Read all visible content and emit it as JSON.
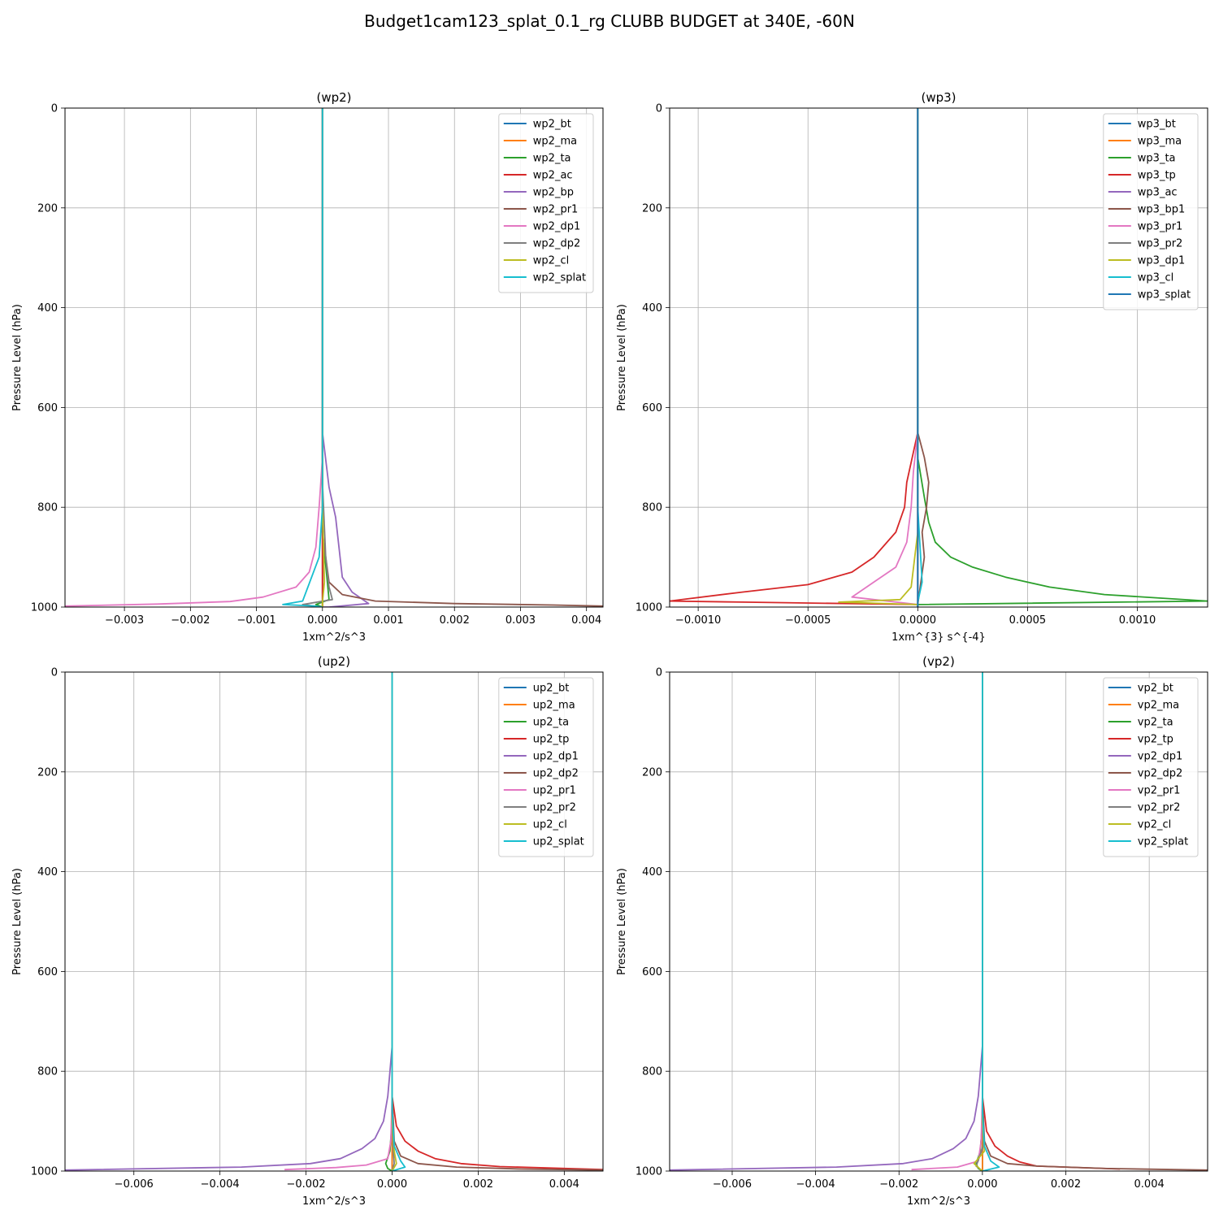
{
  "suptitle": "Budget1cam123_splat_0.1_rg CLUBB BUDGET at 340E, -60N",
  "colors": [
    "#1f77b4",
    "#ff7f0e",
    "#2ca02c",
    "#d62728",
    "#9467bd",
    "#8c564b",
    "#e377c2",
    "#7f7f7f",
    "#bcbd22",
    "#17becf"
  ],
  "chart_data": [
    {
      "type": "line",
      "title": "(wp2)",
      "xlabel": "1xm^2/s^3",
      "ylabel": "Pressure Level (hPa)",
      "xlim": [
        -0.0039,
        0.00425
      ],
      "ylim": [
        1000,
        0
      ],
      "y_inverted": true,
      "grid": true,
      "legend_loc": "upper right",
      "xticks": [
        -0.003,
        -0.002,
        -0.001,
        0.0,
        0.001,
        0.002,
        0.003,
        0.004
      ],
      "xtick_labels": [
        "−0.003",
        "−0.002",
        "−0.001",
        "0.000",
        "0.001",
        "0.002",
        "0.003",
        "0.004"
      ],
      "yticks": [
        0,
        200,
        400,
        600,
        800,
        1000
      ],
      "ytick_labels": [
        "0",
        "200",
        "400",
        "600",
        "800",
        "1000"
      ],
      "series": [
        {
          "name": "wp2_bt",
          "x": [
            0,
            0,
            0,
            0
          ],
          "y": [
            0,
            600,
            950,
            1000
          ]
        },
        {
          "name": "wp2_ma",
          "x": [
            0,
            0,
            0,
            0
          ],
          "y": [
            0,
            600,
            950,
            1000
          ]
        },
        {
          "name": "wp2_ta",
          "x": [
            0,
            0,
            0.0001,
            -0.0001,
            0
          ],
          "y": [
            0,
            850,
            985,
            995,
            1000
          ]
        },
        {
          "name": "wp2_ac",
          "x": [
            0,
            0,
            0,
            0
          ],
          "y": [
            0,
            600,
            950,
            1000
          ]
        },
        {
          "name": "wp2_bp",
          "x": [
            0,
            0,
            0.0001,
            0.0002,
            0.00025,
            0.0003,
            0.00045,
            0.0007,
            0.0001,
            0
          ],
          "y": [
            0,
            650,
            760,
            820,
            880,
            940,
            970,
            993,
            1000,
            1000
          ]
        },
        {
          "name": "wp2_pr1",
          "x": [
            0,
            0,
            0.0001,
            0.0003,
            0.0008,
            0.002,
            0.0035,
            0.00425
          ],
          "y": [
            0,
            850,
            950,
            975,
            988,
            993,
            996,
            998
          ]
        },
        {
          "name": "wp2_dp1",
          "x": [
            0,
            0,
            -5e-05,
            -0.0001,
            -0.0002,
            -0.0004,
            -0.0009,
            -0.0014,
            -0.0025,
            -0.0039
          ],
          "y": [
            0,
            700,
            800,
            880,
            930,
            960,
            980,
            989,
            994,
            998
          ]
        },
        {
          "name": "wp2_dp2",
          "x": [
            0,
            0,
            5e-05,
            0.0001,
            0.00015,
            -0.0003,
            0
          ],
          "y": [
            0,
            750,
            900,
            960,
            985,
            995,
            1000
          ]
        },
        {
          "name": "wp2_cl",
          "x": [
            0,
            0,
            3e-05,
            0,
            0
          ],
          "y": [
            0,
            800,
            950,
            990,
            1000
          ]
        },
        {
          "name": "wp2_splat",
          "x": [
            0,
            0,
            -5e-05,
            -0.0003,
            -0.0006,
            -0.0001,
            0
          ],
          "y": [
            0,
            800,
            900,
            988,
            995,
            998,
            1000
          ]
        }
      ]
    },
    {
      "type": "line",
      "title": "(wp3)",
      "xlabel": "1xm^{3} s^{-4}",
      "ylabel": "Pressure Level (hPa)",
      "xlim": [
        -0.00113,
        0.00132
      ],
      "ylim": [
        1000,
        0
      ],
      "y_inverted": true,
      "grid": true,
      "legend_loc": "upper right",
      "xticks": [
        -0.001,
        -0.0005,
        0.0,
        0.0005,
        0.001
      ],
      "xtick_labels": [
        "−0.0010",
        "−0.0005",
        "0.0000",
        "0.0005",
        "0.0010"
      ],
      "yticks": [
        0,
        200,
        400,
        600,
        800,
        1000
      ],
      "ytick_labels": [
        "0",
        "200",
        "400",
        "600",
        "800",
        "1000"
      ],
      "series": [
        {
          "name": "wp3_bt",
          "x": [
            0,
            0,
            0,
            0
          ],
          "y": [
            0,
            600,
            950,
            1000
          ]
        },
        {
          "name": "wp3_ma",
          "x": [
            0,
            0,
            0,
            0
          ],
          "y": [
            0,
            600,
            950,
            1000
          ]
        },
        {
          "name": "wp3_ta",
          "x": [
            0,
            0,
            3e-05,
            5e-05,
            8e-05,
            0.00015,
            0.00025,
            0.0004,
            0.0006,
            0.00085,
            0.00132,
            0
          ],
          "y": [
            0,
            700,
            780,
            830,
            870,
            900,
            920,
            940,
            960,
            975,
            988,
            995
          ]
        },
        {
          "name": "wp3_tp",
          "x": [
            0,
            0,
            -5e-05,
            -6e-05,
            -0.0001,
            -0.0002,
            -0.0003,
            -0.0005,
            -0.0008,
            -0.00113,
            -0.0008,
            0
          ],
          "y": [
            0,
            650,
            750,
            800,
            850,
            900,
            930,
            955,
            970,
            988,
            990,
            995
          ]
        },
        {
          "name": "wp3_ac",
          "x": [
            0,
            0,
            0,
            0
          ],
          "y": [
            0,
            600,
            950,
            1000
          ]
        },
        {
          "name": "wp3_bp1",
          "x": [
            0,
            0,
            3e-05,
            5e-05,
            4e-05,
            2e-05,
            3e-05,
            0
          ],
          "y": [
            0,
            650,
            700,
            750,
            800,
            850,
            900,
            995
          ]
        },
        {
          "name": "wp3_pr1",
          "x": [
            0,
            0,
            -2e-05,
            -3e-05,
            -5e-05,
            -0.0001,
            -0.0002,
            -0.0003,
            0
          ],
          "y": [
            0,
            650,
            730,
            800,
            870,
            920,
            950,
            980,
            995
          ]
        },
        {
          "name": "wp3_pr2",
          "x": [
            0,
            0,
            0,
            0
          ],
          "y": [
            0,
            600,
            950,
            1000
          ]
        },
        {
          "name": "wp3_dp1",
          "x": [
            0,
            0,
            -3e-05,
            -8e-05,
            -0.00036,
            0
          ],
          "y": [
            0,
            850,
            960,
            985,
            990,
            995
          ]
        },
        {
          "name": "wp3_cl",
          "x": [
            0,
            0,
            2e-05,
            0,
            0
          ],
          "y": [
            0,
            800,
            950,
            990,
            1000
          ]
        },
        {
          "name": "wp3_splat",
          "x": [
            0,
            0,
            0,
            0
          ],
          "y": [
            0,
            600,
            950,
            1000
          ]
        }
      ]
    },
    {
      "type": "line",
      "title": "(up2)",
      "xlabel": "1xm^2/s^3",
      "ylabel": "Pressure Level (hPa)",
      "xlim": [
        -0.0076,
        0.0049
      ],
      "ylim": [
        1000,
        0
      ],
      "y_inverted": true,
      "grid": true,
      "legend_loc": "upper right",
      "xticks": [
        -0.006,
        -0.004,
        -0.002,
        0.0,
        0.002,
        0.004
      ],
      "xtick_labels": [
        "−0.006",
        "−0.004",
        "−0.002",
        "0.000",
        "0.002",
        "0.004"
      ],
      "yticks": [
        0,
        200,
        400,
        600,
        800,
        1000
      ],
      "ytick_labels": [
        "0",
        "200",
        "400",
        "600",
        "800",
        "1000"
      ],
      "series": [
        {
          "name": "up2_bt",
          "x": [
            0,
            0,
            0,
            0
          ],
          "y": [
            0,
            600,
            950,
            1000
          ]
        },
        {
          "name": "up2_ma",
          "x": [
            0,
            0,
            0,
            0
          ],
          "y": [
            0,
            600,
            950,
            1000
          ]
        },
        {
          "name": "up2_ta",
          "x": [
            0,
            0,
            -5e-05,
            -0.00015,
            -0.0001,
            0
          ],
          "y": [
            0,
            900,
            960,
            985,
            995,
            1000
          ]
        },
        {
          "name": "up2_tp",
          "x": [
            0,
            0,
            0.0001,
            0.0003,
            0.0006,
            0.001,
            0.0016,
            0.0025,
            0.0049
          ],
          "y": [
            0,
            850,
            910,
            940,
            960,
            975,
            985,
            991,
            997
          ]
        },
        {
          "name": "up2_dp1",
          "x": [
            0,
            0,
            -0.0001,
            -0.0002,
            -0.0004,
            -0.0007,
            -0.0012,
            -0.0019,
            -0.0035,
            -0.0076
          ],
          "y": [
            0,
            750,
            850,
            900,
            935,
            955,
            975,
            985,
            992,
            998
          ]
        },
        {
          "name": "up2_dp2",
          "x": [
            0,
            0,
            5e-05,
            0.0002,
            0.0006,
            0.0015,
            0.003,
            0.0049
          ],
          "y": [
            0,
            850,
            940,
            970,
            985,
            992,
            996,
            998
          ]
        },
        {
          "name": "up2_pr1",
          "x": [
            0,
            0,
            -3e-05,
            -0.0001,
            -0.0006,
            -0.0013,
            -0.0025
          ],
          "y": [
            0,
            850,
            940,
            975,
            988,
            993,
            997
          ]
        },
        {
          "name": "up2_pr2",
          "x": [
            0,
            0,
            2e-05,
            5e-05,
            0
          ],
          "y": [
            0,
            850,
            950,
            985,
            1000
          ]
        },
        {
          "name": "up2_cl",
          "x": [
            0,
            0,
            5e-05,
            0.0001,
            0
          ],
          "y": [
            0,
            900,
            960,
            985,
            1000
          ]
        },
        {
          "name": "up2_splat",
          "x": [
            0,
            0,
            5e-05,
            0.0002,
            0.0003,
            0
          ],
          "y": [
            0,
            880,
            950,
            980,
            992,
            1000
          ]
        }
      ]
    },
    {
      "type": "line",
      "title": "(vp2)",
      "xlabel": "1xm^2/s^3",
      "ylabel": "Pressure Level (hPa)",
      "xlim": [
        -0.0075,
        0.0054
      ],
      "ylim": [
        1000,
        0
      ],
      "y_inverted": true,
      "grid": true,
      "legend_loc": "upper right",
      "xticks": [
        -0.006,
        -0.004,
        -0.002,
        0.0,
        0.002,
        0.004
      ],
      "xtick_labels": [
        "−0.006",
        "−0.004",
        "−0.002",
        "0.000",
        "0.002",
        "0.004"
      ],
      "yticks": [
        0,
        200,
        400,
        600,
        800,
        1000
      ],
      "ytick_labels": [
        "0",
        "200",
        "400",
        "600",
        "800",
        "1000"
      ],
      "series": [
        {
          "name": "vp2_bt",
          "x": [
            0,
            0,
            0,
            0
          ],
          "y": [
            0,
            600,
            950,
            1000
          ]
        },
        {
          "name": "vp2_ma",
          "x": [
            0,
            0,
            0,
            0
          ],
          "y": [
            0,
            600,
            950,
            1000
          ]
        },
        {
          "name": "vp2_ta",
          "x": [
            0,
            0,
            -5e-05,
            -0.00015,
            -0.0001,
            0
          ],
          "y": [
            0,
            900,
            960,
            985,
            995,
            1000
          ]
        },
        {
          "name": "vp2_tp",
          "x": [
            0,
            0,
            0.0001,
            0.0003,
            0.0006,
            0.0009,
            0.0013,
            0.0033
          ],
          "y": [
            0,
            850,
            920,
            950,
            970,
            982,
            990,
            996
          ]
        },
        {
          "name": "vp2_dp1",
          "x": [
            0,
            0,
            -0.0001,
            -0.0002,
            -0.0004,
            -0.0007,
            -0.0012,
            -0.0019,
            -0.0035,
            -0.0075
          ],
          "y": [
            0,
            750,
            850,
            900,
            935,
            955,
            975,
            985,
            992,
            998
          ]
        },
        {
          "name": "vp2_dp2",
          "x": [
            0,
            0,
            5e-05,
            0.0002,
            0.0006,
            0.0013,
            0.003,
            0.0054
          ],
          "y": [
            0,
            850,
            940,
            970,
            985,
            990,
            995,
            998
          ]
        },
        {
          "name": "vp2_pr1",
          "x": [
            0,
            0,
            -3e-05,
            -0.0001,
            -0.0006,
            -0.0017
          ],
          "y": [
            0,
            850,
            940,
            980,
            992,
            997
          ]
        },
        {
          "name": "vp2_pr2",
          "x": [
            0,
            0,
            2e-05,
            -0.00015,
            0
          ],
          "y": [
            0,
            850,
            950,
            990,
            1000
          ]
        },
        {
          "name": "vp2_cl",
          "x": [
            0,
            0,
            5e-05,
            -0.0002,
            0
          ],
          "y": [
            0,
            900,
            960,
            985,
            1000
          ]
        },
        {
          "name": "vp2_splat",
          "x": [
            0,
            0,
            5e-05,
            0.0002,
            0.0004,
            0
          ],
          "y": [
            0,
            880,
            950,
            980,
            992,
            1000
          ]
        }
      ]
    }
  ]
}
